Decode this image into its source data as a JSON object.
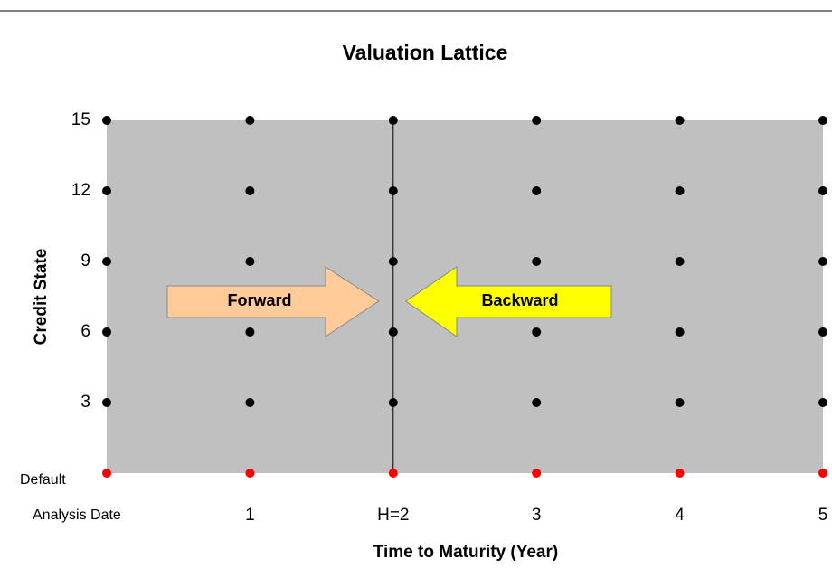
{
  "chart_data": {
    "type": "scatter",
    "title": "Valuation Lattice",
    "x_label": "Time to Maturity (Year)",
    "y_label": "Credit State",
    "xlim": [
      0,
      5
    ],
    "ylim": [
      0,
      15
    ],
    "xticks": [
      {
        "value": 0,
        "label": "Analysis Date"
      },
      1,
      {
        "value": 2,
        "label": "H=2"
      },
      3,
      4,
      5
    ],
    "yticks": [
      {
        "value": 0,
        "label": "Default"
      },
      3,
      6,
      9,
      12,
      15
    ],
    "vline": 2,
    "plot_background": "#c0c0c0",
    "series": [
      {
        "color": "#000000",
        "x": [
          0,
          1,
          2,
          3,
          4,
          5,
          0,
          1,
          2,
          3,
          4,
          5,
          0,
          1,
          2,
          3,
          4,
          5,
          0,
          1,
          2,
          3,
          4,
          5,
          0,
          1,
          2,
          3,
          4,
          5
        ],
        "values": [
          15,
          15,
          15,
          15,
          15,
          15,
          12,
          12,
          12,
          12,
          12,
          12,
          9,
          9,
          9,
          9,
          9,
          9,
          6,
          6,
          6,
          6,
          6,
          6,
          3,
          3,
          3,
          3,
          3,
          3
        ]
      },
      {
        "color": "#ff0000",
        "x": [
          0,
          1,
          2,
          3,
          4,
          5
        ],
        "values": [
          0,
          0,
          0,
          0,
          0,
          0
        ]
      }
    ],
    "annotations": [
      {
        "text": "Forward",
        "color": "#ffcc99"
      },
      {
        "text": "Backward",
        "color": "#ffff00"
      }
    ]
  }
}
